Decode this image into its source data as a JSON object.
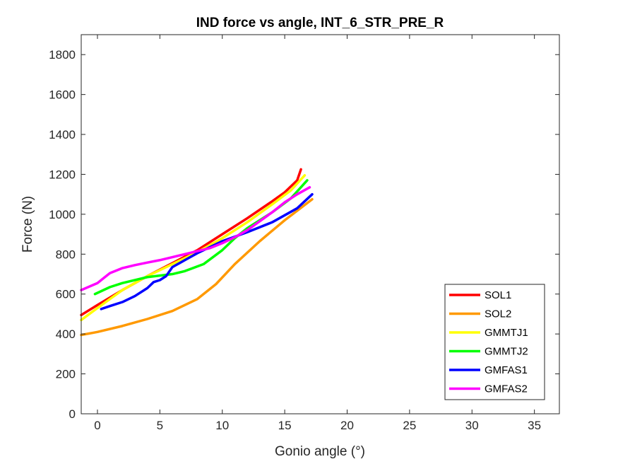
{
  "chart_data": {
    "type": "line",
    "title": "IND force vs angle, INT_6_STR_PRE_R",
    "xlabel": "Gonio angle (°)",
    "ylabel": "Force (N)",
    "xlim": [
      -1.3,
      37
    ],
    "ylim": [
      0,
      1900
    ],
    "xticks": [
      0,
      5,
      10,
      15,
      20,
      25,
      30,
      35
    ],
    "yticks": [
      0,
      200,
      400,
      600,
      800,
      1000,
      1200,
      1400,
      1600,
      1800
    ],
    "grid": false,
    "legend_position": "bottom-right",
    "series": [
      {
        "name": "SOL1",
        "color": "#ff0000",
        "x": [
          -1.3,
          0,
          2,
          4,
          6,
          8,
          10,
          12,
          14,
          15,
          16,
          16.3
        ],
        "y": [
          495,
          545,
          620,
          690,
          755,
          820,
          900,
          980,
          1065,
          1110,
          1170,
          1225
        ]
      },
      {
        "name": "SOL2",
        "color": "#ff9900",
        "x": [
          -1.3,
          0,
          2,
          4,
          6,
          8,
          9.5,
          11,
          13,
          15,
          17.2
        ],
        "y": [
          395,
          410,
          440,
          475,
          515,
          575,
          650,
          750,
          865,
          970,
          1075
        ]
      },
      {
        "name": "GMMTJ1",
        "color": "#ffff00",
        "x": [
          -1.3,
          0,
          2,
          4,
          6,
          8,
          10,
          12,
          14,
          15.5,
          16.6
        ],
        "y": [
          470,
          530,
          620,
          690,
          750,
          810,
          880,
          960,
          1050,
          1120,
          1195
        ]
      },
      {
        "name": "GMMTJ2",
        "color": "#00ff00",
        "x": [
          -0.2,
          1,
          2,
          4,
          6,
          7,
          8.5,
          10,
          11,
          12,
          14,
          15.5,
          16.8
        ],
        "y": [
          600,
          635,
          655,
          685,
          700,
          715,
          750,
          820,
          880,
          930,
          1010,
          1080,
          1170
        ]
      },
      {
        "name": "GMFAS1",
        "color": "#0000ff",
        "x": [
          0.3,
          1,
          2,
          3,
          4,
          4.5,
          5,
          5.5,
          6,
          7,
          8,
          9,
          10,
          12,
          14,
          16,
          17.2
        ],
        "y": [
          525,
          540,
          560,
          590,
          630,
          660,
          670,
          690,
          735,
          770,
          805,
          835,
          865,
          910,
          960,
          1030,
          1100
        ]
      },
      {
        "name": "GMFAS2",
        "color": "#ff00ff",
        "x": [
          -1.3,
          0,
          0.5,
          1,
          2,
          3,
          4,
          5,
          6,
          7,
          8,
          9,
          10,
          11,
          12,
          13,
          14,
          15,
          16,
          17
        ],
        "y": [
          620,
          655,
          680,
          705,
          730,
          745,
          758,
          770,
          785,
          800,
          815,
          830,
          855,
          885,
          920,
          965,
          1010,
          1060,
          1100,
          1135
        ]
      }
    ]
  }
}
